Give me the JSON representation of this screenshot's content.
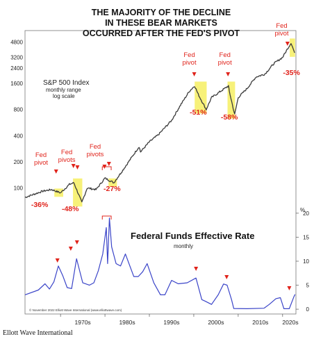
{
  "title": [
    "THE MAJORITY OF THE DECLINE",
    "IN THESE BEAR MARKETS",
    "OCCURRED AFTER THE FED'S PIVOT"
  ],
  "source_caption": "Ellott Wave International",
  "chart_data": [
    {
      "type": "line",
      "series": [
        {
          "name": "S&P 500 Index",
          "subtitle": [
            "monthly range",
            "log scale"
          ]
        }
      ],
      "yscale": "log",
      "yticks": [
        "100",
        "200",
        "400",
        "800",
        "1600",
        "2400",
        "3200",
        "4800"
      ],
      "ylim": [
        70,
        6500
      ],
      "x": [
        1962,
        1966,
        1968,
        1970,
        1972,
        1973,
        1974.8,
        1976,
        1978,
        1980,
        1982,
        1984,
        1987.7,
        1988,
        1990,
        1992,
        1995,
        1997,
        1999,
        2000.2,
        2001,
        2002.8,
        2004,
        2007.8,
        2008,
        2009.2,
        2010,
        2012,
        2014,
        2016,
        2018,
        2020,
        2021.9,
        2022.7
      ],
      "values": [
        78,
        92,
        96,
        88,
        110,
        115,
        68,
        100,
        96,
        130,
        115,
        160,
        300,
        260,
        340,
        410,
        600,
        900,
        1300,
        1500,
        1200,
        800,
        1100,
        1500,
        1300,
        700,
        1100,
        1400,
        1900,
        2050,
        2700,
        3200,
        4700,
        3600
      ],
      "annotations": [
        {
          "label": [
            "Fed",
            "pivot"
          ],
          "drop": "-36%"
        },
        {
          "label": [
            "Fed",
            "pivots"
          ],
          "drop": "-48%"
        },
        {
          "label": [
            "Fed",
            "pivots"
          ],
          "drop": "-27%"
        },
        {
          "label": [
            "Fed",
            "pivot"
          ],
          "drop": "-51%"
        },
        {
          "label": [
            "Fed",
            "pivot"
          ],
          "drop": "-58%"
        },
        {
          "label": [
            "Fed",
            "pivot"
          ],
          "drop": "-35%"
        }
      ]
    },
    {
      "type": "line",
      "series": [
        {
          "name": "Federal Funds Effective Rate",
          "subtitle": "monthly"
        }
      ],
      "unit": "%",
      "yticks": [
        "0",
        "5",
        "10",
        "15",
        "20"
      ],
      "ylim": [
        -1,
        21
      ],
      "x": [
        1962,
        1965,
        1966.5,
        1967.5,
        1968.5,
        1969.5,
        1970.5,
        1971.5,
        1972.5,
        1973.6,
        1975,
        1976.5,
        1977.5,
        1978.5,
        1979.5,
        1980.3,
        1980.6,
        1981,
        1981.5,
        1982.5,
        1983.5,
        1984.6,
        1986.5,
        1987.5,
        1988.5,
        1989.5,
        1991,
        1992.5,
        1993.5,
        1995,
        1996.5,
        1998.5,
        2000.5,
        2001.8,
        2002.5,
        2004,
        2005.5,
        2006.7,
        2007.5,
        2008.5,
        2009,
        2012,
        2015.8,
        2017,
        2018.5,
        2019.5,
        2020.3,
        2021.5,
        2022.5,
        2022.8
      ],
      "values": [
        3.0,
        4.0,
        5.3,
        4.2,
        5.7,
        9.0,
        7.0,
        4.5,
        4.3,
        10.5,
        5.5,
        5.0,
        5.5,
        8.0,
        11.5,
        17.0,
        9.5,
        19.0,
        13.0,
        9.5,
        9.0,
        11.5,
        6.8,
        6.8,
        7.8,
        9.5,
        5.5,
        3.0,
        3.0,
        6.0,
        5.3,
        5.5,
        6.5,
        2.0,
        1.7,
        1.0,
        3.0,
        5.25,
        5.0,
        2.0,
        0.15,
        0.1,
        0.2,
        1.0,
        2.2,
        2.4,
        0.1,
        0.1,
        2.5,
        3.1
      ],
      "pivot_markers": 6
    }
  ],
  "x_axis_ticks": [
    "1970s",
    "1980s",
    "1990s",
    "2000s",
    "2010s",
    "2020s"
  ],
  "copyright": "© November 2022 Elliott Wave International (www.elliottwave.com)"
}
